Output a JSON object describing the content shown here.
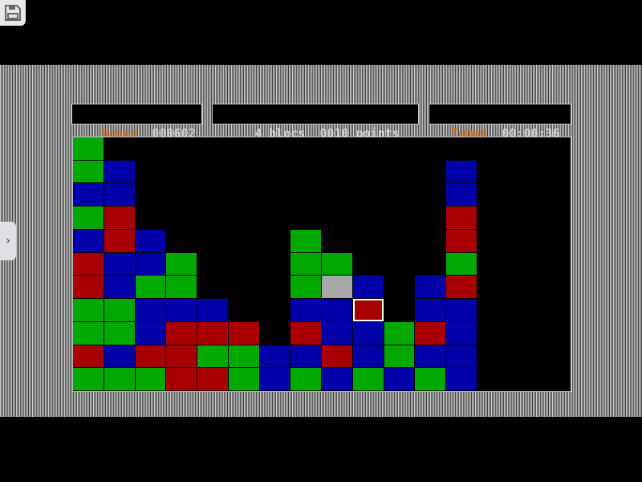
{
  "header": {
    "score_label": "Score",
    "score_value": "000602",
    "selection_text": "4 blocs  0010 points",
    "time_label": "Temps",
    "time_value": "00:00:36"
  },
  "colors": {
    "G": "#00a800",
    "B": "#0000a8",
    "R": "#a80000",
    "W": "#a8a8a8",
    "label": "#d07010"
  },
  "board": {
    "columns": 16,
    "rows": [
      "G...............",
      "GB..........B...",
      "BB..........B...",
      "GR..........R...",
      "BRB....G....R...",
      "RBBG...GG...G...",
      "RBGG...GWB.BR...",
      "GGBBB..BBR.BB...",
      "GGBRRR.RBBGRB...",
      "RBRRGGBBRBGBB...",
      "GGGRRGBGBGBGB..."
    ],
    "selected": {
      "row": 7,
      "col": 9
    }
  },
  "icons": {
    "save": "floppy-disk-icon",
    "side": "chevron-right-icon"
  }
}
